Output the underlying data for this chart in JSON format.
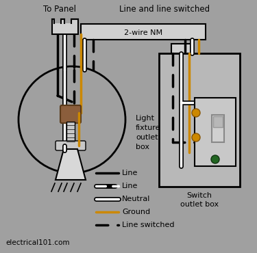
{
  "bg_color": "#a0a0a0",
  "title_top": "Line and line switched",
  "title_panel": "To Panel",
  "label_nm": "2-wire NM",
  "label_light": "Light\nfixture\noutlet\nbox",
  "label_switch": "Switch\noutlet box",
  "label_elec": "electrical101.com",
  "wire_colors": {
    "black": "#000000",
    "white": "#ffffff",
    "ground": "#cc8800"
  },
  "switch_box_color": "#b8b8b8",
  "face_plate_color": "#c8c8c8",
  "brown_socket": "#8B5e3c"
}
